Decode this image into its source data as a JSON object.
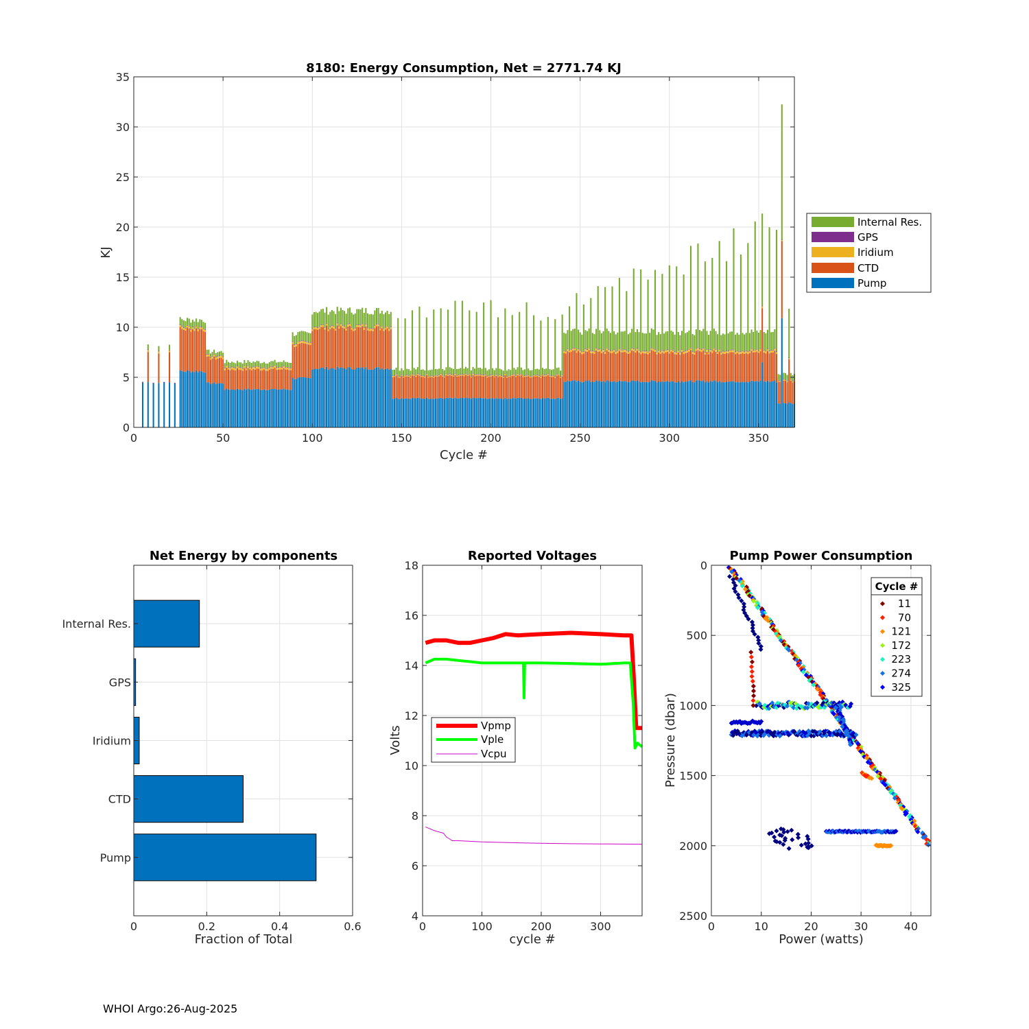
{
  "footer": "WHOI Argo:26-Aug-2025",
  "colors": {
    "pump": "#0072BD",
    "ctd": "#D95319",
    "iridium": "#EDB120",
    "gps": "#7E2F8E",
    "internal": "#77AC30",
    "vpmp": "#FF0000",
    "vple": "#00FF00",
    "vcpu": "#CC00CC"
  },
  "chart_data": [
    {
      "id": "energy",
      "type": "bar",
      "stacked": true,
      "title": "8180: Energy Consumption,  Net = 2771.74 KJ",
      "xlabel": "Cycle #",
      "ylabel": "KJ",
      "xlim": [
        0,
        370
      ],
      "ylim": [
        0,
        35
      ],
      "xticks": [
        "0",
        "50",
        "100",
        "150",
        "200",
        "250",
        "300",
        "350"
      ],
      "yticks": [
        "0",
        "5",
        "10",
        "15",
        "20",
        "25",
        "30",
        "35"
      ],
      "legend": [
        "Internal Res.",
        "GPS",
        "Iridium",
        "CTD",
        "Pump"
      ],
      "legend_location": "outside-right",
      "segments": [
        {
          "from": 5,
          "to": 24,
          "pump": 4.5,
          "ctd": 3.0,
          "iridium": 0.2,
          "gps": 0.05,
          "internal": 0.5,
          "sparse": true
        },
        {
          "from": 26,
          "to": 40,
          "pump": 5.6,
          "ctd": 4.2,
          "iridium": 0.2,
          "gps": 0.05,
          "internal": 0.7
        },
        {
          "from": 41,
          "to": 50,
          "pump": 4.4,
          "ctd": 2.5,
          "iridium": 0.2,
          "gps": 0.05,
          "internal": 0.4
        },
        {
          "from": 51,
          "to": 88,
          "pump": 3.8,
          "ctd": 2.0,
          "iridium": 0.2,
          "gps": 0.05,
          "internal": 0.5
        },
        {
          "from": 89,
          "to": 99,
          "pump": 4.9,
          "ctd": 3.3,
          "iridium": 0.2,
          "gps": 0.05,
          "internal": 0.9
        },
        {
          "from": 100,
          "to": 144,
          "pump": 5.9,
          "ctd": 4.0,
          "iridium": 0.2,
          "gps": 0.05,
          "internal": 1.5
        },
        {
          "from": 145,
          "to": 240,
          "pump": 2.9,
          "ctd": 2.2,
          "iridium": 0.1,
          "gps": 0.05,
          "internal": 0.6,
          "spikes": 6.8
        },
        {
          "from": 241,
          "to": 360,
          "pump": 4.6,
          "ctd": 2.9,
          "iridium": 0.2,
          "gps": 0.05,
          "internal": 1.8,
          "spikes": 8.0
        },
        {
          "from": 361,
          "to": 370,
          "pump": 2.4,
          "ctd": 2.2,
          "iridium": 0.1,
          "gps": 0.05,
          "internal": 0.6
        }
      ],
      "spikes": [
        {
          "cycle": 363,
          "pump": 10.9,
          "ctd": 7.7,
          "iridium": 0.1,
          "gps": 0.05,
          "internal": 13.5
        },
        {
          "cycle": 352,
          "pump": 6.5,
          "ctd": 5.4,
          "iridium": 0.2,
          "gps": 0.05,
          "internal": 9.2
        },
        {
          "cycle": 367,
          "pump": 2.5,
          "ctd": 4.3,
          "iridium": 0.1,
          "gps": 0.05,
          "internal": 4.9
        }
      ]
    },
    {
      "id": "components",
      "type": "bar",
      "orientation": "horizontal",
      "title": "Net Energy by components",
      "xlabel": "Fraction of Total",
      "categories": [
        "Internal Res.",
        "GPS",
        "Iridium",
        "CTD",
        "Pump"
      ],
      "values": [
        0.18,
        0.005,
        0.015,
        0.3,
        0.5
      ],
      "xlim": [
        0,
        0.6
      ],
      "xticks": [
        "0",
        "0.2",
        "0.4",
        "0.6"
      ]
    },
    {
      "id": "voltages",
      "type": "line",
      "title": "Reported Voltages",
      "xlabel": "cycle #",
      "ylabel": "Volts",
      "xlim": [
        0,
        370
      ],
      "ylim": [
        4,
        18
      ],
      "xticks": [
        "0",
        "100",
        "200",
        "300"
      ],
      "yticks": [
        "4",
        "6",
        "8",
        "10",
        "12",
        "14",
        "16",
        "18"
      ],
      "legend_location": "middle-left",
      "series": [
        {
          "name": "Vpmp",
          "x": [
            5,
            20,
            40,
            60,
            80,
            100,
            120,
            140,
            160,
            200,
            250,
            300,
            340,
            352,
            356,
            360,
            370
          ],
          "y": [
            14.9,
            15.0,
            15.0,
            14.9,
            14.9,
            15.0,
            15.1,
            15.25,
            15.2,
            15.25,
            15.3,
            15.25,
            15.2,
            15.2,
            13.5,
            11.5,
            11.5
          ]
        },
        {
          "name": "Vple",
          "x": [
            5,
            20,
            40,
            60,
            80,
            100,
            140,
            170,
            171,
            172,
            176,
            177,
            200,
            250,
            300,
            340,
            350,
            355,
            358,
            362,
            370
          ],
          "y": [
            14.1,
            14.25,
            14.25,
            14.2,
            14.15,
            14.1,
            14.1,
            14.1,
            12.7,
            14.1,
            14.1,
            14.1,
            14.1,
            14.08,
            14.05,
            14.1,
            14.1,
            12.5,
            10.7,
            10.9,
            10.75
          ]
        },
        {
          "name": "Vcpu",
          "x": [
            5,
            20,
            35,
            40,
            50,
            60,
            100,
            150,
            200,
            250,
            300,
            370
          ],
          "y": [
            7.55,
            7.4,
            7.3,
            7.15,
            7.0,
            7.0,
            6.95,
            6.92,
            6.9,
            6.88,
            6.87,
            6.86
          ]
        }
      ]
    },
    {
      "id": "pump-power",
      "type": "scatter",
      "title": "Pump Power Consumption",
      "xlabel": "Power (watts)",
      "ylabel": "Pressure (dbar)",
      "xlim": [
        0,
        44
      ],
      "ylim": [
        0,
        2500
      ],
      "y_reversed": true,
      "xticks": [
        "0",
        "10",
        "20",
        "30",
        "40"
      ],
      "yticks": [
        "0",
        "500",
        "1000",
        "1500",
        "2000",
        "2500"
      ],
      "legend_title": "Cycle #",
      "legend_location": "top-right",
      "series": [
        {
          "name": "11",
          "color": "#800000"
        },
        {
          "name": "70",
          "color": "#FF2000"
        },
        {
          "name": "121",
          "color": "#FF8C00"
        },
        {
          "name": "172",
          "color": "#A0F020"
        },
        {
          "name": "223",
          "color": "#20F0C0"
        },
        {
          "name": "274",
          "color": "#1870E8"
        },
        {
          "name": "325",
          "color": "#0000FF"
        }
      ],
      "point_groups": [
        {
          "kind": "line",
          "x0": 3.5,
          "y0": 0,
          "x1": 44,
          "y1": 2010,
          "n": 260,
          "colors": [
            "#800000",
            "#FF2000",
            "#FF8C00",
            "#A0F020",
            "#20F0C0",
            "#1870E8",
            "#0000FF"
          ],
          "noise": 0.9
        },
        {
          "kind": "line",
          "x0": 4,
          "y0": 1200,
          "x1": 29,
          "y1": 1200,
          "n": 140,
          "colors": [
            "#0000CC",
            "#000080",
            "#1870E8"
          ],
          "noise": 40
        },
        {
          "kind": "line",
          "x0": 4,
          "y0": 1120,
          "x1": 10,
          "y1": 1120,
          "n": 25,
          "colors": [
            "#0000CC"
          ],
          "noise": 20
        },
        {
          "kind": "line",
          "x0": 9,
          "y0": 1000,
          "x1": 28,
          "y1": 1000,
          "n": 90,
          "colors": [
            "#000080",
            "#0000CC",
            "#1870E8",
            "#A0F020",
            "#20F0C0"
          ],
          "noise": 50
        },
        {
          "kind": "line",
          "x0": 25,
          "y0": 1000,
          "x1": 28,
          "y1": 1280,
          "n": 40,
          "colors": [
            "#0000CC",
            "#1870E8"
          ],
          "noise": 0.8
        },
        {
          "kind": "line",
          "x0": 13,
          "y0": 1880,
          "x1": 19,
          "y1": 2020,
          "n": 30,
          "colors": [
            "#000080"
          ],
          "noise": 8
        },
        {
          "kind": "line",
          "x0": 23,
          "y0": 1900,
          "x1": 37,
          "y1": 1900,
          "n": 70,
          "colors": [
            "#0000CC",
            "#1870E8"
          ],
          "noise": 10
        },
        {
          "kind": "line",
          "x0": 33,
          "y0": 2000,
          "x1": 36,
          "y1": 2000,
          "n": 20,
          "colors": [
            "#FF8C00"
          ],
          "noise": 8
        },
        {
          "kind": "line",
          "x0": 4,
          "y0": 80,
          "x1": 10,
          "y1": 600,
          "n": 25,
          "colors": [
            "#000080"
          ],
          "noise": 1.0
        },
        {
          "kind": "line",
          "x0": 8,
          "y0": 620,
          "x1": 8.5,
          "y1": 1000,
          "n": 12,
          "colors": [
            "#800000",
            "#FF2000"
          ],
          "noise": 0.3
        },
        {
          "kind": "line",
          "x0": 30,
          "y0": 1480,
          "x1": 32,
          "y1": 1520,
          "n": 12,
          "colors": [
            "#FF2000",
            "#FF8C00"
          ],
          "noise": 0.5
        }
      ]
    }
  ]
}
